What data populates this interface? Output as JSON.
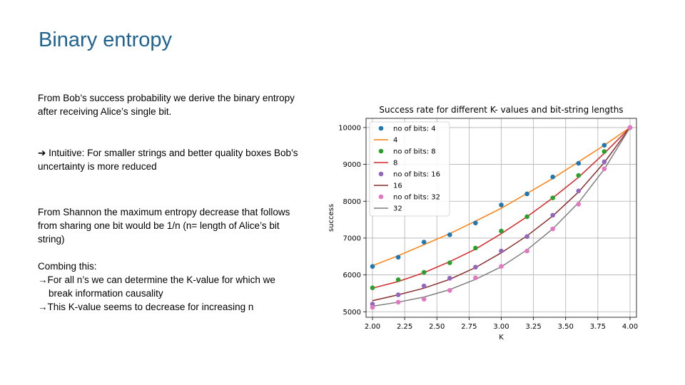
{
  "slide": {
    "title": "Binary entropy",
    "paragraph1_line1": "From  Bob’s success probability we derive the binary entropy",
    "paragraph1_line2": "after receiving Alice’s single bit.",
    "arrow_glyph": "➔",
    "paragraph2_line1": " Intuitive: For smaller strings and better quality boxes Bob’s",
    "paragraph2_line2": "uncertainty is more reduced",
    "paragraph3_line1": "From  Shannon the maximum entropy decrease that follows",
    "paragraph3_line2": "from sharing one bit would be 1/n (n= length of Alice’s bit",
    "paragraph3_line3": "string)",
    "paragraph4_heading": "Combing this:",
    "bullet_arrow": "→",
    "bullet1_line1": "For all n’s we can determine  the K-value for which we",
    "bullet1_line2": "break information  causality",
    "bullet2": "This K-value seems to decrease for increasing n"
  },
  "chart_data": {
    "type": "scatter",
    "title": "Success rate for different K- values and bit-string lengths",
    "xlabel": "K",
    "ylabel": "success",
    "xlim": [
      1.95,
      4.05
    ],
    "ylim": [
      4850,
      10250
    ],
    "xticks": [
      "2.00",
      "2.25",
      "2.50",
      "2.75",
      "3.00",
      "3.25",
      "3.50",
      "3.75",
      "4.00"
    ],
    "yticks": [
      "5000",
      "6000",
      "7000",
      "8000",
      "9000",
      "10000"
    ],
    "grid": true,
    "legend_position": "top-left",
    "x": [
      2.0,
      2.2,
      2.4,
      2.6,
      2.8,
      3.0,
      3.2,
      3.4,
      3.6,
      3.8,
      4.0
    ],
    "series": [
      {
        "name": "no of bits: 4",
        "kind": "points",
        "color": "#1f77b4",
        "values": [
          6230,
          6480,
          6890,
          7090,
          7410,
          7900,
          8200,
          8660,
          9030,
          9520,
          10000
        ]
      },
      {
        "name": "4",
        "kind": "line",
        "color": "#ff7f0e",
        "values": [
          6250,
          6520,
          6820,
          7120,
          7460,
          7810,
          8210,
          8620,
          9070,
          9520,
          10000
        ]
      },
      {
        "name": "no of bits: 8",
        "kind": "points",
        "color": "#2ca02c",
        "values": [
          5650,
          5870,
          6070,
          6330,
          6730,
          7190,
          7580,
          8090,
          8700,
          9350,
          10000
        ]
      },
      {
        "name": "8",
        "kind": "line",
        "color": "#d62728",
        "values": [
          5640,
          5820,
          6060,
          6360,
          6700,
          7120,
          7580,
          8090,
          8650,
          9300,
          10000
        ]
      },
      {
        "name": "no of bits: 16",
        "kind": "points",
        "color": "#9467bd",
        "values": [
          5210,
          5460,
          5700,
          5910,
          6210,
          6650,
          7040,
          7620,
          8280,
          9070,
          10000
        ]
      },
      {
        "name": "16",
        "kind": "line",
        "color": "#8c2d2d",
        "values": [
          5300,
          5460,
          5640,
          5880,
          6200,
          6600,
          7060,
          7600,
          8250,
          9050,
          10000
        ]
      },
      {
        "name": "no of bits: 32",
        "kind": "points",
        "color": "#e377c2",
        "values": [
          5120,
          5260,
          5340,
          5580,
          5920,
          6230,
          6650,
          7250,
          7920,
          8880,
          10000
        ]
      },
      {
        "name": "32",
        "kind": "line",
        "color": "#7f7f7f",
        "values": [
          5150,
          5260,
          5400,
          5600,
          5880,
          6220,
          6680,
          7250,
          7960,
          8870,
          10000
        ]
      }
    ]
  }
}
